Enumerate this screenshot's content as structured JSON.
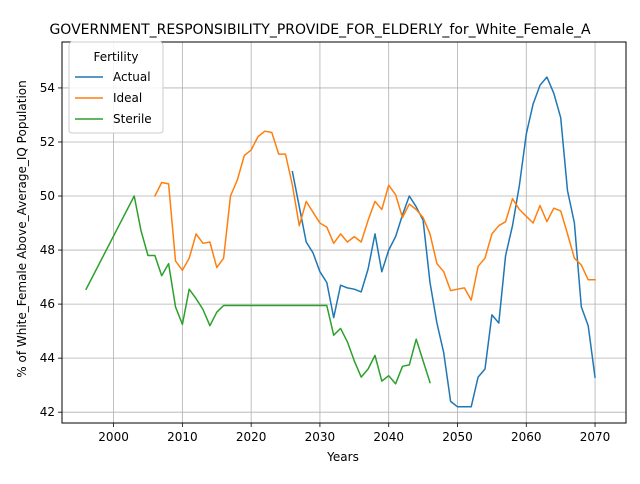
{
  "chart_data": {
    "type": "line",
    "title": "GOVERNMENT_RESPONSIBILITY_PROVIDE_FOR_ELDERLY_for_White_Female_A",
    "xlabel": "Years",
    "ylabel": "% of White_Female Above_Average_IQ Population",
    "xlim": [
      1992.5,
      2074.5
    ],
    "ylim": [
      41.6,
      55.7
    ],
    "xticks": [
      2000,
      2010,
      2020,
      2030,
      2040,
      2050,
      2060,
      2070
    ],
    "yticks": [
      42,
      44,
      46,
      48,
      50,
      52,
      54
    ],
    "grid": true,
    "legend": {
      "title": "Fertility",
      "placement": "upper-left"
    },
    "series": [
      {
        "name": "Actual",
        "color": "#1f77b4",
        "points": [
          [
            2026,
            50.9
          ],
          [
            2027,
            49.6
          ],
          [
            2028,
            48.3
          ],
          [
            2029,
            47.9
          ],
          [
            2030,
            47.2
          ],
          [
            2031,
            46.8
          ],
          [
            2032,
            45.5
          ],
          [
            2033,
            46.7
          ],
          [
            2034,
            46.6
          ],
          [
            2035,
            46.55
          ],
          [
            2036,
            46.45
          ],
          [
            2037,
            47.3
          ],
          [
            2038,
            48.6
          ],
          [
            2039,
            47.2
          ],
          [
            2040,
            48.0
          ],
          [
            2041,
            48.5
          ],
          [
            2042,
            49.3
          ],
          [
            2043,
            50.0
          ],
          [
            2044,
            49.6
          ],
          [
            2045,
            49.1
          ],
          [
            2046,
            46.8
          ],
          [
            2047,
            45.3
          ],
          [
            2048,
            44.2
          ],
          [
            2049,
            42.4
          ],
          [
            2050,
            42.2
          ],
          [
            2051,
            42.2
          ],
          [
            2052,
            42.2
          ],
          [
            2053,
            43.3
          ],
          [
            2054,
            43.6
          ],
          [
            2055,
            45.6
          ],
          [
            2056,
            45.3
          ],
          [
            2057,
            47.8
          ],
          [
            2058,
            48.9
          ],
          [
            2059,
            50.4
          ],
          [
            2060,
            52.3
          ],
          [
            2061,
            53.4
          ],
          [
            2062,
            54.1
          ],
          [
            2063,
            54.4
          ],
          [
            2064,
            53.8
          ],
          [
            2065,
            52.9
          ],
          [
            2066,
            50.2
          ],
          [
            2067,
            49.0
          ],
          [
            2068,
            45.9
          ],
          [
            2069,
            45.2
          ],
          [
            2070,
            43.3
          ]
        ]
      },
      {
        "name": "Ideal",
        "color": "#ff7f0e",
        "points": [
          [
            2006,
            50.0
          ],
          [
            2007,
            50.5
          ],
          [
            2008,
            50.45
          ],
          [
            2009,
            47.6
          ],
          [
            2010,
            47.25
          ],
          [
            2011,
            47.7
          ],
          [
            2012,
            48.6
          ],
          [
            2013,
            48.25
          ],
          [
            2014,
            48.3
          ],
          [
            2015,
            47.35
          ],
          [
            2016,
            47.7
          ],
          [
            2017,
            50.0
          ],
          [
            2018,
            50.6
          ],
          [
            2019,
            51.5
          ],
          [
            2020,
            51.7
          ],
          [
            2021,
            52.2
          ],
          [
            2022,
            52.4
          ],
          [
            2023,
            52.35
          ],
          [
            2024,
            51.55
          ],
          [
            2025,
            51.55
          ],
          [
            2026,
            50.4
          ],
          [
            2027,
            48.9
          ],
          [
            2028,
            49.8
          ],
          [
            2029,
            49.4
          ],
          [
            2030,
            49.0
          ],
          [
            2031,
            48.85
          ],
          [
            2032,
            48.25
          ],
          [
            2033,
            48.6
          ],
          [
            2034,
            48.3
          ],
          [
            2035,
            48.5
          ],
          [
            2036,
            48.3
          ],
          [
            2037,
            49.1
          ],
          [
            2038,
            49.8
          ],
          [
            2039,
            49.5
          ],
          [
            2040,
            50.4
          ],
          [
            2041,
            50.05
          ],
          [
            2042,
            49.2
          ],
          [
            2043,
            49.7
          ],
          [
            2044,
            49.5
          ],
          [
            2045,
            49.2
          ],
          [
            2046,
            48.6
          ],
          [
            2047,
            47.5
          ],
          [
            2048,
            47.2
          ],
          [
            2049,
            46.5
          ],
          [
            2050,
            46.55
          ],
          [
            2051,
            46.6
          ],
          [
            2052,
            46.15
          ],
          [
            2053,
            47.4
          ],
          [
            2054,
            47.7
          ],
          [
            2055,
            48.6
          ],
          [
            2056,
            48.9
          ],
          [
            2057,
            49.05
          ],
          [
            2058,
            49.9
          ],
          [
            2059,
            49.5
          ],
          [
            2060,
            49.25
          ],
          [
            2061,
            49.0
          ],
          [
            2062,
            49.65
          ],
          [
            2063,
            49.05
          ],
          [
            2064,
            49.55
          ],
          [
            2065,
            49.45
          ],
          [
            2066,
            48.6
          ],
          [
            2067,
            47.7
          ],
          [
            2068,
            47.45
          ],
          [
            2069,
            46.9
          ],
          [
            2070,
            46.9
          ]
        ]
      },
      {
        "name": "Sterile",
        "color": "#2ca02c",
        "points": [
          [
            1996,
            46.55
          ],
          [
            2003,
            50.0
          ],
          [
            2004,
            48.7
          ],
          [
            2005,
            47.8
          ],
          [
            2006,
            47.8
          ],
          [
            2007,
            47.05
          ],
          [
            2008,
            47.5
          ],
          [
            2009,
            45.9
          ],
          [
            2010,
            45.25
          ],
          [
            2011,
            46.55
          ],
          [
            2012,
            46.2
          ],
          [
            2013,
            45.8
          ],
          [
            2014,
            45.2
          ],
          [
            2015,
            45.7
          ],
          [
            2016,
            45.95
          ],
          [
            2017,
            45.95
          ],
          [
            2018,
            45.95
          ],
          [
            2019,
            45.95
          ],
          [
            2020,
            45.95
          ],
          [
            2021,
            45.95
          ],
          [
            2022,
            45.95
          ],
          [
            2023,
            45.95
          ],
          [
            2024,
            45.95
          ],
          [
            2025,
            45.95
          ],
          [
            2026,
            45.95
          ],
          [
            2027,
            45.95
          ],
          [
            2028,
            45.95
          ],
          [
            2029,
            45.95
          ],
          [
            2030,
            45.95
          ],
          [
            2031,
            45.95
          ],
          [
            2032,
            44.85
          ],
          [
            2033,
            45.1
          ],
          [
            2034,
            44.6
          ],
          [
            2035,
            43.9
          ],
          [
            2036,
            43.3
          ],
          [
            2037,
            43.6
          ],
          [
            2038,
            44.1
          ],
          [
            2039,
            43.15
          ],
          [
            2040,
            43.35
          ],
          [
            2041,
            43.05
          ],
          [
            2042,
            43.7
          ],
          [
            2043,
            43.75
          ],
          [
            2044,
            44.7
          ],
          [
            2045,
            43.9
          ],
          [
            2046,
            43.1
          ]
        ]
      }
    ]
  }
}
